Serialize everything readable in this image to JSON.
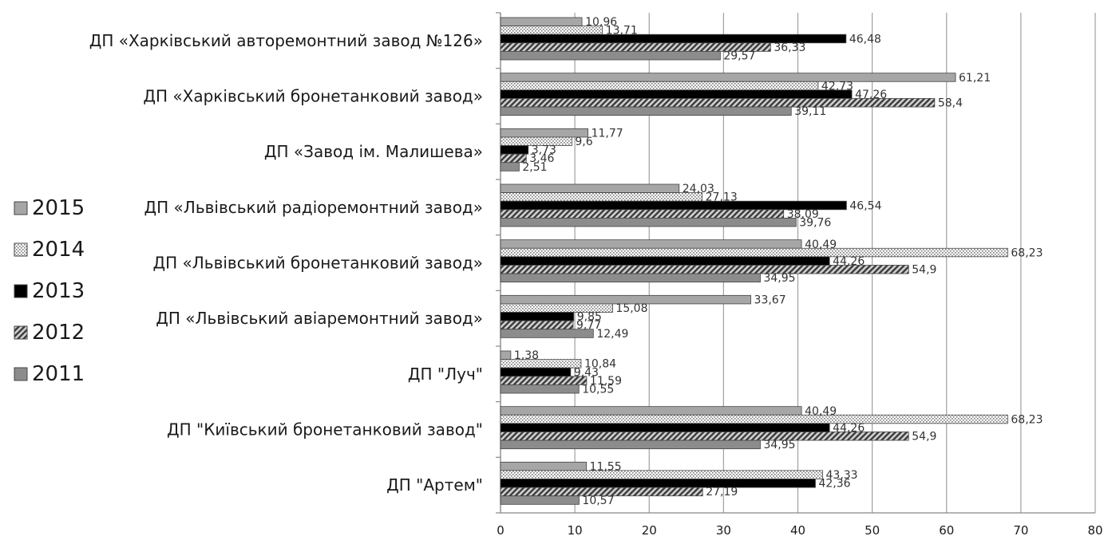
{
  "chart_data": {
    "type": "bar",
    "orientation": "horizontal",
    "categories": [
      "ДП «Харківський авторемонтний завод №126»",
      "ДП «Харківський бронетанковий завод»",
      "ДП «Завод ім. Малишева»",
      "ДП «Львівський радіоремонтний завод»",
      "ДП «Львівський бронетанковий завод»",
      "ДП «Львівський авіаремонтний завод»",
      "ДП \"Луч\"",
      "ДП \"Київський бронетанковий завод\"",
      "ДП \"Артем\""
    ],
    "series": [
      {
        "name": "2015",
        "color": "#a6a6a6",
        "pattern": "solid-light",
        "values": [
          10.96,
          61.21,
          11.77,
          24.03,
          40.49,
          33.67,
          1.38,
          40.49,
          11.55
        ],
        "labels": [
          "10,96",
          "61,21",
          "11,77",
          "24,03",
          "40,49",
          "33,67",
          "1,38",
          "40,49",
          "11,55"
        ]
      },
      {
        "name": "2014",
        "color": "#e6e6e6",
        "pattern": "dotted",
        "values": [
          13.71,
          42.73,
          9.6,
          27.13,
          68.23,
          15.08,
          10.84,
          68.23,
          43.33
        ],
        "labels": [
          "13,71",
          "42,73",
          "9,6",
          "27,13",
          "68,23",
          "15,08",
          "10,84",
          "68,23",
          "43,33"
        ]
      },
      {
        "name": "2013",
        "color": "#000000",
        "pattern": "solid-black",
        "values": [
          46.48,
          47.26,
          3.73,
          46.54,
          44.26,
          9.85,
          9.43,
          44.26,
          42.36
        ],
        "labels": [
          "46,48",
          "47,26",
          "3,73",
          "46,54",
          "44,26",
          "9,85",
          "9,43",
          "44,26",
          "42,36"
        ]
      },
      {
        "name": "2012",
        "color": "#6e6e6e",
        "pattern": "diagonal",
        "values": [
          36.33,
          58.4,
          3.46,
          38.09,
          54.9,
          9.77,
          11.59,
          54.9,
          27.19
        ],
        "labels": [
          "36,33",
          "58,4",
          "3,46",
          "38,09",
          "54,9",
          "9,77",
          "11,59",
          "54,9",
          "27,19"
        ]
      },
      {
        "name": "2011",
        "color": "#8c8c8c",
        "pattern": "solid-dark",
        "values": [
          29.57,
          39.11,
          2.51,
          39.76,
          34.95,
          12.49,
          10.55,
          34.95,
          10.57
        ],
        "labels": [
          "29,57",
          "39,11",
          "2,51",
          "39,76",
          "34,95",
          "12,49",
          "10,55",
          "34,95",
          "10,57"
        ]
      }
    ],
    "legend_order": [
      "2015",
      "2014",
      "2013",
      "2012",
      "2011"
    ],
    "x_ticks": [
      "0",
      "10",
      "20",
      "30",
      "40",
      "50",
      "60",
      "70",
      "80"
    ],
    "xlim": [
      0,
      80
    ],
    "grid": true,
    "legend_position": "left"
  }
}
